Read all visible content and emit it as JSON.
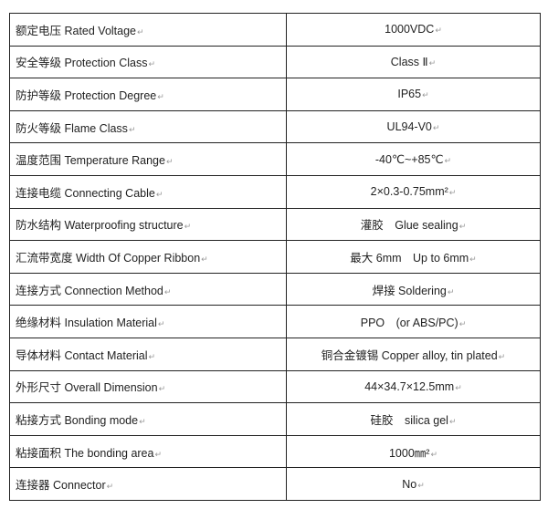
{
  "para_mark": "↵",
  "rows": [
    {
      "label": "额定电压 Rated Voltage",
      "value": "1000VDC"
    },
    {
      "label": "安全等级 Protection Class",
      "value": "Class Ⅱ"
    },
    {
      "label": "防护等级 Protection Degree",
      "value": "IP65"
    },
    {
      "label": "防火等级 Flame Class",
      "value": "UL94-V0"
    },
    {
      "label": "温度范围 Temperature Range",
      "value": "-40℃~+85℃"
    },
    {
      "label": "连接电缆 Connecting Cable",
      "value": "2×0.3-0.75mm²"
    },
    {
      "label": "防水结构 Waterproofing structure",
      "value": "灌胶　Glue sealing"
    },
    {
      "label": "汇流带宽度 Width Of Copper Ribbon",
      "value": "最大 6mm　Up to 6mm"
    },
    {
      "label": "连接方式 Connection Method",
      "value": "焊接 Soldering"
    },
    {
      "label": "绝缘材料 Insulation Material",
      "value": "PPO　(or ABS/PC)"
    },
    {
      "label": "导体材料 Contact Material",
      "value": "铜合金镀锡 Copper alloy, tin plated"
    },
    {
      "label": "外形尺寸 Overall Dimension",
      "value": "44×34.7×12.5mm"
    },
    {
      "label": "粘接方式 Bonding mode",
      "value": "硅胶　silica gel"
    },
    {
      "label": "粘接面积 The bonding area",
      "value": "1000㎜²"
    },
    {
      "label": "连接器 Connector",
      "value": "No"
    }
  ]
}
